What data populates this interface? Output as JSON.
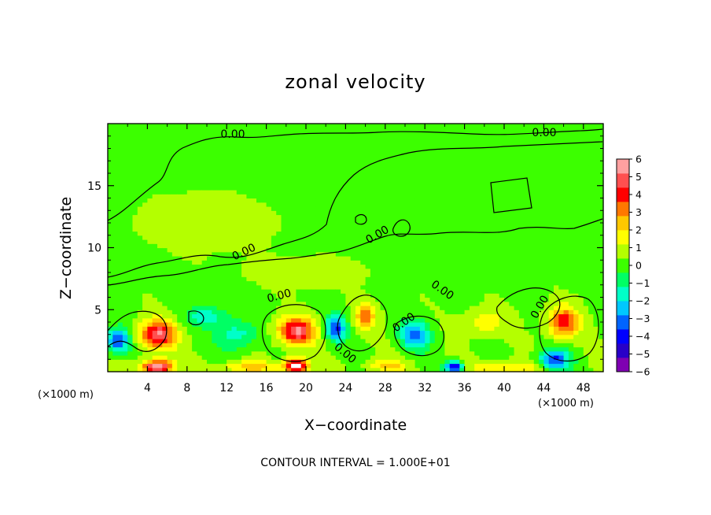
{
  "chart_data": {
    "type": "heatmap",
    "title": "zonal velocity",
    "xlabel": "X−coordinate",
    "ylabel": "Z−coordinate",
    "x_units_left": "(×1000 m)",
    "x_units_right": "(×1000 m)",
    "footer": "CONTOUR INTERVAL = 1.000E+01",
    "xlim": [
      0,
      50
    ],
    "ylim": [
      0,
      20
    ],
    "x_ticks": [
      4,
      8,
      12,
      16,
      20,
      24,
      28,
      32,
      36,
      40,
      44,
      48
    ],
    "y_ticks": [
      5,
      10,
      15
    ],
    "x_tick_labels": [
      "4",
      "8",
      "12",
      "16",
      "20",
      "24",
      "28",
      "32",
      "36",
      "40",
      "44",
      "48"
    ],
    "y_tick_labels": [
      "5",
      "10",
      "15"
    ],
    "contour_labels": [
      "0.00",
      "0.00",
      "0.00",
      "0.00",
      "0.00",
      "0.00",
      "0.00",
      "0.00",
      "0.00",
      "0.00"
    ],
    "colorbar": {
      "min": -6,
      "max": 6,
      "tick_labels": [
        "6",
        "5",
        "4",
        "3",
        "2",
        "1",
        "0",
        "−1",
        "−2",
        "−3",
        "−4",
        "−5",
        "−6"
      ],
      "colors": [
        "#7f00b2",
        "#2800c8",
        "#0000ff",
        "#0064ff",
        "#00c8ff",
        "#00ffc8",
        "#00ff64",
        "#3cff00",
        "#b4ff00",
        "#ffff00",
        "#ffc800",
        "#ff7800",
        "#ff0000",
        "#ff5050",
        "#ffa0a0"
      ]
    },
    "features": [
      {
        "x": 5,
        "z": 3.0,
        "value": 5,
        "sx": 1.8,
        "sz": 1.1
      },
      {
        "x": 19,
        "z": 3.3,
        "value": 5,
        "sx": 1.8,
        "sz": 1.1
      },
      {
        "x": 46,
        "z": 4.0,
        "value": 4,
        "sx": 1.5,
        "sz": 1.2
      },
      {
        "x": 26,
        "z": 4.5,
        "value": 3,
        "sx": 1.0,
        "sz": 1.0
      },
      {
        "x": 5,
        "z": 0.4,
        "value": 6,
        "sx": 1.5,
        "sz": 0.6
      },
      {
        "x": 19,
        "z": 0.5,
        "value": 6,
        "sx": 1.2,
        "sz": 0.6
      },
      {
        "x": 1,
        "z": 2.5,
        "value": -4,
        "sx": 1.2,
        "sz": 1.0
      },
      {
        "x": 13,
        "z": 3.0,
        "value": -2,
        "sx": 2.0,
        "sz": 1.2
      },
      {
        "x": 23,
        "z": 3.5,
        "value": -4,
        "sx": 1.0,
        "sz": 1.0
      },
      {
        "x": 31,
        "z": 3.0,
        "value": -3.5,
        "sx": 1.5,
        "sz": 1.1
      },
      {
        "x": 45,
        "z": 1.0,
        "value": -4,
        "sx": 1.5,
        "sz": 0.8
      },
      {
        "x": 35,
        "z": 0.4,
        "value": -5,
        "sx": 0.9,
        "sz": 0.5
      },
      {
        "x": 10,
        "z": 4.5,
        "value": -2,
        "sx": 2.0,
        "sz": 0.8
      },
      {
        "x": 14,
        "z": 0.4,
        "value": 2,
        "sx": 3.0,
        "sz": 0.5
      },
      {
        "x": 28,
        "z": 0.5,
        "value": 2,
        "sx": 2.0,
        "sz": 0.5
      },
      {
        "x": 40,
        "z": 0.4,
        "value": 2,
        "sx": 3.0,
        "sz": 0.5
      },
      {
        "x": 38,
        "z": 4.0,
        "value": 1.5,
        "sx": 2.0,
        "sz": 1.0
      },
      {
        "x": 10,
        "z": 12,
        "value": 0.6,
        "sx": 6.0,
        "sz": 2.0
      },
      {
        "x": 30,
        "z": 16,
        "value": -0.4,
        "sx": 8.0,
        "sz": 2.5
      },
      {
        "x": 20,
        "z": 8,
        "value": 0.8,
        "sx": 5.0,
        "sz": 1.0
      }
    ]
  }
}
